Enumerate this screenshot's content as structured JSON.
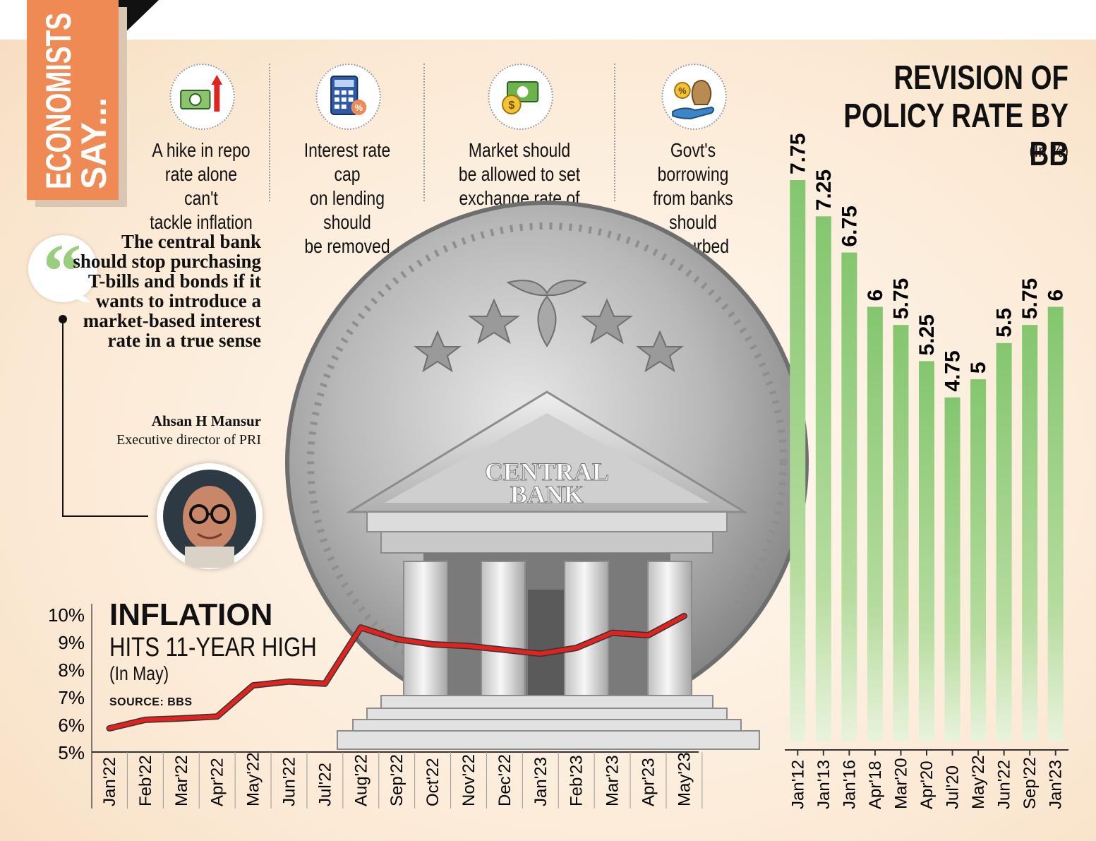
{
  "tag": {
    "line1": "ECONOMISTS",
    "line2": "SAY..."
  },
  "features": [
    {
      "text": "A hike in repo\nrate alone can't\ntackle inflation",
      "icon": "money-arrow-up-icon"
    },
    {
      "text": "Interest rate cap\non lending should\nbe removed",
      "icon": "calculator-percent-icon"
    },
    {
      "text": "Market should\nbe allowed to set\nexchange rate of dollar",
      "icon": "dollar-coins-icon"
    },
    {
      "text": "Govt's borrowing\nfrom banks should\nbe curbed",
      "icon": "hand-money-bag-icon"
    }
  ],
  "quote": {
    "text": "The central bank should stop purchasing T-bills and bonds if it wants to introduce a market-based interest rate in a true sense",
    "author": "Ahsan H Mansur",
    "role": "Executive director of PRI"
  },
  "illustration": {
    "bank_label_line1": "CENTRAL",
    "bank_label_line2": "BANK"
  },
  "chart_data": [
    {
      "type": "bar",
      "title": "REVISION OF POLICY RATE BY BB",
      "unit": "(In %)",
      "categories": [
        "Jan'12",
        "Jan'13",
        "Jan'16",
        "Apr'18",
        "Mar'20",
        "Apr'20",
        "Jul'20",
        "May'22",
        "Jun'22",
        "Sep'22",
        "Jan'23"
      ],
      "values": [
        7.75,
        7.25,
        6.75,
        6,
        5.75,
        5.25,
        4.75,
        5,
        5.5,
        5.75,
        6
      ],
      "value_labels": [
        "7.75",
        "7.25",
        "6.75",
        "6",
        "5.75",
        "5.25",
        "4.75",
        "5",
        "5.5",
        "5.75",
        "6"
      ],
      "ylim": [
        0,
        8
      ],
      "bar_color": "#84c66f"
    },
    {
      "type": "line",
      "title": "INFLATION",
      "subtitle": "HITS 11-YEAR HIGH",
      "unit": "(In May)",
      "source": "SOURCE: BBS",
      "x": [
        "Jan'22",
        "Feb'22",
        "Mar'22",
        "Apr'22",
        "May'22",
        "Jun'22",
        "Jul'22",
        "Aug'22",
        "Sep'22",
        "Oct'22",
        "Nov'22",
        "Dec'22",
        "Jan'23",
        "Feb'23",
        "Mar'23",
        "Apr'23",
        "May'23"
      ],
      "values": [
        5.86,
        6.17,
        6.22,
        6.29,
        7.42,
        7.56,
        7.48,
        9.52,
        9.1,
        8.91,
        8.85,
        8.71,
        8.57,
        8.78,
        9.33,
        9.24,
        9.94
      ],
      "y_ticks": [
        "10%",
        "9%",
        "8%",
        "7%",
        "6%",
        "5%"
      ],
      "ylim": [
        5,
        10
      ],
      "line_color": "#e0231f"
    }
  ]
}
